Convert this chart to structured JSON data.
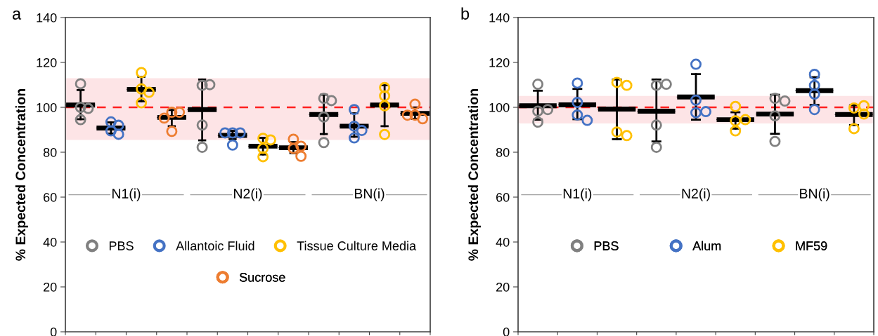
{
  "chart_data": [
    {
      "type": "scatter",
      "title": "a",
      "ylabel": "% Expected Concentration",
      "categories": [
        null,
        null,
        null,
        null,
        null,
        null,
        null,
        null,
        null,
        null,
        null,
        null
      ],
      "ylim": [
        0,
        140
      ],
      "yticks": [
        0,
        20,
        40,
        60,
        80,
        100,
        120,
        140
      ],
      "tick_labels": "y",
      "grid": false,
      "legend": "bottom",
      "marker": "circle",
      "annotations": [
        "N1(i)",
        "N2(i)",
        "BN(i)"
      ],
      "ref_lines": [
        {
          "axis": "y",
          "value": 100,
          "color": "#ff2020",
          "line_style": "dashed"
        }
      ],
      "bands": [
        {
          "axis": "y",
          "from": 85.5,
          "to": 113,
          "color": "#fde4e6"
        }
      ],
      "series": [
        {
          "name": "PBS",
          "color": "#808080",
          "values": [
            110.5,
            null,
            null,
            null,
            109.8,
            null,
            null,
            null,
            104,
            null,
            null,
            null
          ]
        },
        {
          "color": "#808080",
          "values": [
            100,
            null,
            null,
            null,
            110.1,
            null,
            null,
            null,
            103,
            null,
            null,
            null
          ]
        },
        {
          "color": "#808080",
          "values": [
            99.5,
            null,
            null,
            null,
            92.1,
            null,
            null,
            null,
            95.7,
            null,
            null,
            null
          ]
        },
        {
          "color": "#808080",
          "values": [
            94.5,
            null,
            null,
            null,
            82.2,
            null,
            null,
            null,
            84.3,
            null,
            null,
            null
          ]
        },
        {
          "name": "Allantoic Fluid",
          "color": "#4472c4",
          "values": [
            null,
            93.5,
            null,
            null,
            null,
            88.6,
            null,
            null,
            null,
            99,
            null,
            null
          ]
        },
        {
          "color": "#4472c4",
          "values": [
            null,
            92,
            null,
            null,
            null,
            88.6,
            null,
            null,
            null,
            91.6,
            null,
            null
          ]
        },
        {
          "color": "#4472c4",
          "values": [
            null,
            89.5,
            null,
            null,
            null,
            88.6,
            null,
            null,
            null,
            89.7,
            null,
            null
          ]
        },
        {
          "color": "#4472c4",
          "values": [
            null,
            88,
            null,
            null,
            null,
            83.2,
            null,
            null,
            null,
            86.4,
            null,
            null
          ]
        },
        {
          "name": "Tissue Culture Media",
          "color": "#ffc000",
          "values": [
            null,
            null,
            115.5,
            null,
            null,
            null,
            86.2,
            null,
            null,
            null,
            108.8,
            null
          ]
        },
        {
          "color": "#ffc000",
          "values": [
            null,
            null,
            108.2,
            null,
            null,
            null,
            85.5,
            null,
            null,
            null,
            105.1,
            null
          ]
        },
        {
          "color": "#ffc000",
          "values": [
            null,
            null,
            106.7,
            null,
            null,
            null,
            81.7,
            null,
            null,
            null,
            87.9,
            null
          ]
        },
        {
          "color": "#ffc000",
          "values": [
            null,
            null,
            102,
            null,
            null,
            null,
            78,
            null,
            null,
            null,
            100.7,
            null
          ]
        },
        {
          "name": "Sucrose",
          "color": "#ed7d31",
          "values": [
            null,
            null,
            null,
            97.8,
            null,
            null,
            null,
            85.8,
            null,
            null,
            null,
            101.4
          ]
        },
        {
          "color": "#ed7d31",
          "values": [
            null,
            null,
            null,
            97.8,
            null,
            null,
            null,
            81.7,
            null,
            null,
            null,
            96.5
          ]
        },
        {
          "color": "#ed7d31",
          "values": [
            null,
            null,
            null,
            95.2,
            null,
            null,
            null,
            82.7,
            null,
            null,
            null,
            94.9
          ]
        },
        {
          "color": "#ed7d31",
          "values": [
            null,
            null,
            null,
            89.3,
            null,
            null,
            null,
            78.2,
            null,
            null,
            null,
            96.5
          ]
        },
        {
          "type": "box",
          "color": "#000000",
          "boxes": [
            {
              "low": 94.7,
              "q1": 101,
              "median": 101,
              "q3": 101,
              "high": 107.7
            },
            {
              "low": 88.3,
              "q1": 90.8,
              "median": 90.8,
              "q3": 90.8,
              "high": 93.3
            },
            {
              "low": 102.7,
              "q1": 108,
              "median": 108,
              "q3": 108,
              "high": 113.6
            },
            {
              "low": 91.6,
              "q1": 95.5,
              "median": 95.5,
              "q3": 95.5,
              "high": 98.8
            },
            {
              "low": 85.3,
              "q1": 99,
              "median": 99,
              "q3": 99,
              "high": 112.4
            },
            {
              "low": 85.8,
              "q1": 87.5,
              "median": 87.5,
              "q3": 87.5,
              "high": 89.5
            },
            {
              "low": 79,
              "q1": 82.7,
              "median": 82.7,
              "q3": 82.7,
              "high": 86.4
            },
            {
              "low": 79.6,
              "q1": 82,
              "median": 82,
              "q3": 82,
              "high": 84.5
            },
            {
              "low": 88.1,
              "q1": 96.8,
              "median": 96.8,
              "q3": 96.8,
              "high": 105.6
            },
            {
              "low": 86.9,
              "q1": 91.6,
              "median": 91.6,
              "q3": 91.6,
              "high": 97.3
            },
            {
              "low": 91.6,
              "q1": 101,
              "median": 101,
              "q3": 101,
              "high": 109.8
            },
            {
              "low": 94.9,
              "q1": 97.3,
              "median": 97.3,
              "q3": 97.3,
              "high": 99.9
            }
          ]
        }
      ]
    },
    {
      "type": "scatter",
      "title": "b",
      "ylabel": "% Expected Concentration",
      "categories": [
        null,
        null,
        null,
        null,
        null,
        null,
        null,
        null,
        null
      ],
      "ylim": [
        0,
        140
      ],
      "yticks": [
        0,
        20,
        40,
        60,
        80,
        100,
        120,
        140
      ],
      "tick_labels": "y",
      "grid": false,
      "legend": "bottom",
      "marker": "circle",
      "annotations": [
        "N1(i)",
        "N2(i)",
        "BN(i)"
      ],
      "ref_lines": [
        {
          "axis": "y",
          "value": 100,
          "color": "#ff2020",
          "line_style": "dashed"
        }
      ],
      "bands": [
        {
          "axis": "y",
          "from": 92.8,
          "to": 105.1,
          "color": "#fde4e6"
        }
      ],
      "series": [
        {
          "name": "PBS",
          "color": "#808080",
          "values": [
            110.3,
            null,
            null,
            109.8,
            null,
            null,
            104,
            null,
            null
          ]
        },
        {
          "color": "#808080",
          "values": [
            98.3,
            null,
            null,
            110.3,
            null,
            null,
            102.8,
            null,
            null
          ]
        },
        {
          "color": "#808080",
          "values": [
            99,
            null,
            null,
            92.1,
            null,
            null,
            96.2,
            null,
            null
          ]
        },
        {
          "color": "#808080",
          "values": [
            93.4,
            null,
            null,
            82.2,
            null,
            null,
            84.8,
            null,
            null
          ]
        },
        {
          "name": "Alum",
          "color": "#4472c4",
          "values": [
            null,
            110.8,
            null,
            null,
            119.2,
            null,
            null,
            114.7,
            null
          ]
        },
        {
          "color": "#4472c4",
          "values": [
            null,
            102.2,
            null,
            null,
            103.2,
            null,
            null,
            109.8,
            null
          ]
        },
        {
          "color": "#4472c4",
          "values": [
            null,
            96.6,
            null,
            null,
            97.6,
            null,
            null,
            105.9,
            null
          ]
        },
        {
          "color": "#4472c4",
          "values": [
            null,
            94.2,
            null,
            null,
            98.1,
            null,
            null,
            99,
            null
          ]
        },
        {
          "name": "MF59",
          "color": "#ffc000",
          "values": [
            null,
            null,
            111.1,
            null,
            null,
            100.4,
            null,
            null,
            99.7
          ]
        },
        {
          "color": "#ffc000",
          "values": [
            null,
            null,
            109.8,
            null,
            null,
            94,
            null,
            null,
            100.7
          ]
        },
        {
          "color": "#ffc000",
          "values": [
            null,
            null,
            89,
            null,
            null,
            94.5,
            null,
            null,
            90.5
          ]
        },
        {
          "color": "#ffc000",
          "values": [
            null,
            null,
            87.4,
            null,
            null,
            89.5,
            null,
            null,
            97
          ]
        },
        {
          "type": "box",
          "color": "#000000",
          "boxes": [
            {
              "low": 94.5,
              "q1": 100.7,
              "median": 100.7,
              "q3": 100.7,
              "high": 107.4
            },
            {
              "low": 94.7,
              "q1": 101.1,
              "median": 101.1,
              "q3": 101.1,
              "high": 108.2
            },
            {
              "low": 85.8,
              "q1": 99.2,
              "median": 99.2,
              "q3": 99.2,
              "high": 112.4
            },
            {
              "low": 84.8,
              "q1": 98.3,
              "median": 98.3,
              "q3": 98.3,
              "high": 112.4
            },
            {
              "low": 94.5,
              "q1": 104.6,
              "median": 104.6,
              "q3": 104.6,
              "high": 114.8
            },
            {
              "low": 90.5,
              "q1": 94.5,
              "median": 94.5,
              "q3": 94.5,
              "high": 97.8
            },
            {
              "low": 88.2,
              "q1": 97,
              "median": 97,
              "q3": 97,
              "high": 105.6
            },
            {
              "low": 101.1,
              "q1": 107.4,
              "median": 107.4,
              "q3": 107.4,
              "high": 113.4
            },
            {
              "low": 92.1,
              "q1": 96.8,
              "median": 96.8,
              "q3": 96.8,
              "high": 100.9
            }
          ]
        }
      ]
    }
  ]
}
